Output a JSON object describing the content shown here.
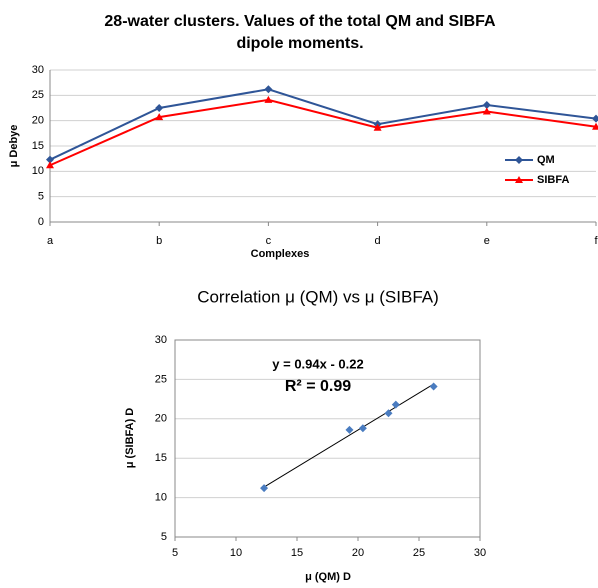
{
  "chart_data": [
    {
      "type": "line",
      "title": [
        "28-water clusters. Values of the total QM and SIBFA",
        "dipole moments."
      ],
      "x_label": "Complexes",
      "y_label": "μ Debye",
      "categories": [
        "a",
        "b",
        "c",
        "d",
        "e",
        "f"
      ],
      "series": [
        {
          "name": "QM",
          "color": "#2f5597",
          "marker": "diamond",
          "values": [
            12.3,
            22.5,
            26.2,
            19.3,
            23.1,
            20.4
          ]
        },
        {
          "name": "SIBFA",
          "color": "#ff0000",
          "marker": "triangle",
          "values": [
            11.2,
            20.7,
            24.1,
            18.6,
            21.8,
            18.8
          ]
        }
      ],
      "ylim": [
        0,
        30
      ],
      "yticks": [
        0,
        5,
        10,
        15,
        20,
        25,
        30
      ],
      "grid": true,
      "legend": "right"
    },
    {
      "type": "scatter",
      "title": "Correlation μ (QM) vs μ (SIBFA)",
      "x_label": "μ (QM) D",
      "y_label": "μ (SIBFA) D",
      "x": [
        12.3,
        22.5,
        26.2,
        19.3,
        23.1,
        20.4
      ],
      "series": [
        {
          "color": "#4a7cc0",
          "values": [
            11.2,
            20.7,
            24.1,
            18.6,
            21.8,
            18.8
          ]
        }
      ],
      "trendline": {
        "label": "y = 0.94x - 0.22",
        "slope": 0.94,
        "intercept": -0.22,
        "r2_label": "R² = 0.99",
        "r2_color": "#ff0000"
      },
      "xlim": [
        5,
        30
      ],
      "xticks": [
        5,
        10,
        15,
        20,
        25,
        30
      ],
      "ylim": [
        5,
        30
      ],
      "yticks": [
        5,
        10,
        15,
        20,
        25,
        30
      ],
      "grid": true
    }
  ]
}
